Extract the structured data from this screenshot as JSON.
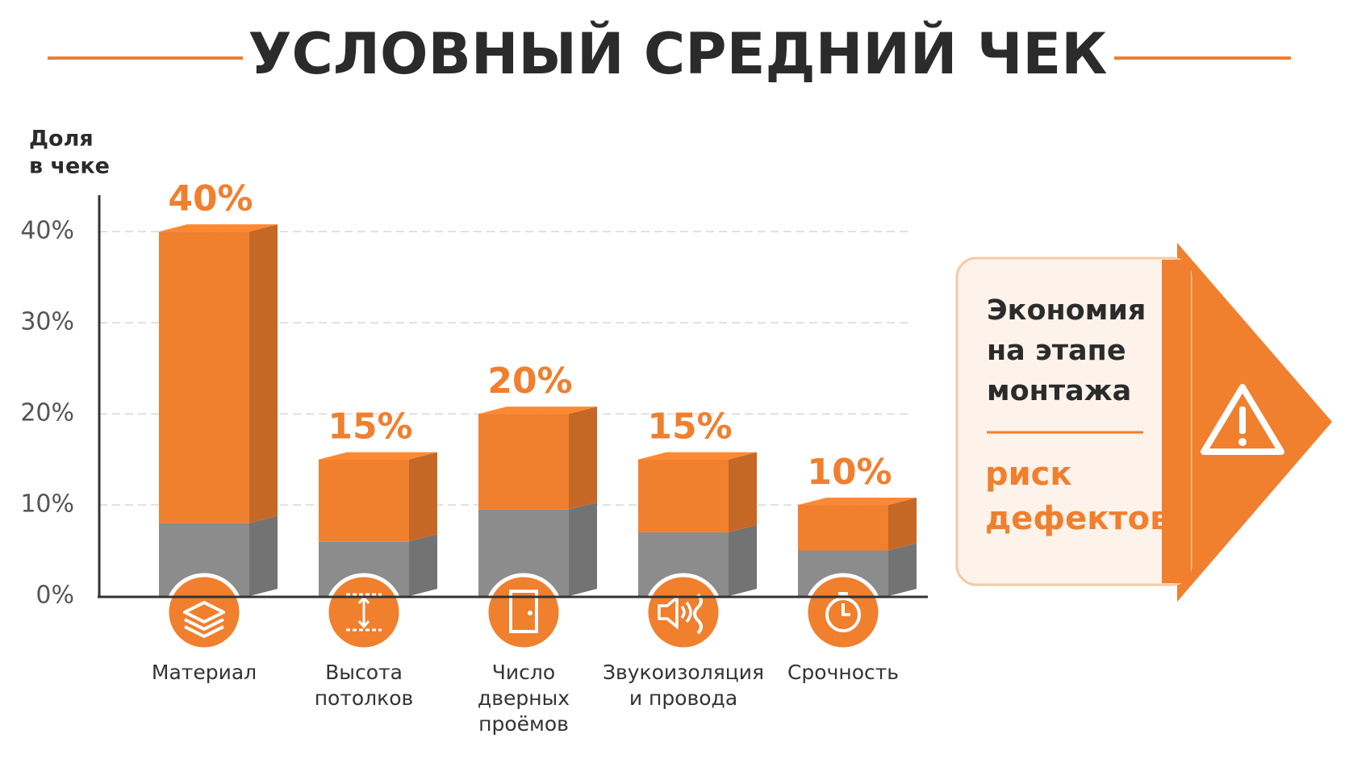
{
  "chart_data": {
    "type": "bar",
    "stacked": true,
    "title": "УСЛОВНЫЙ СРЕДНИЙ ЧЕК",
    "ylabel": [
      "Доля",
      "в чеке"
    ],
    "categories": [
      [
        "Материал"
      ],
      [
        "Высота",
        "потолков"
      ],
      [
        "Число",
        "дверных",
        "проёмов"
      ],
      [
        "Звукоизоляция",
        "и провода"
      ],
      [
        "Срочность"
      ]
    ],
    "series": [
      {
        "color": "#8c8c8c",
        "values": [
          8,
          6,
          9.5,
          7,
          5
        ]
      },
      {
        "color": "#f07f2e",
        "values": [
          32,
          9,
          10.5,
          8,
          5
        ]
      }
    ],
    "totals": [
      40,
      15,
      20,
      15,
      10
    ],
    "total_labels": [
      "40%",
      "15%",
      "20%",
      "15%",
      "10%"
    ],
    "ylim": [
      0,
      44
    ],
    "yticks": [
      {
        "value": 0,
        "label": "0%"
      },
      {
        "value": 10,
        "label": "10%"
      },
      {
        "value": 20,
        "label": "20%"
      },
      {
        "value": 30,
        "label": "30%"
      },
      {
        "value": 40,
        "label": "40%"
      }
    ],
    "grid": true,
    "callout": {
      "text": [
        "Экономия",
        "на этапе",
        "монтажа"
      ],
      "highlight": [
        "риск",
        "дефектов"
      ]
    }
  }
}
